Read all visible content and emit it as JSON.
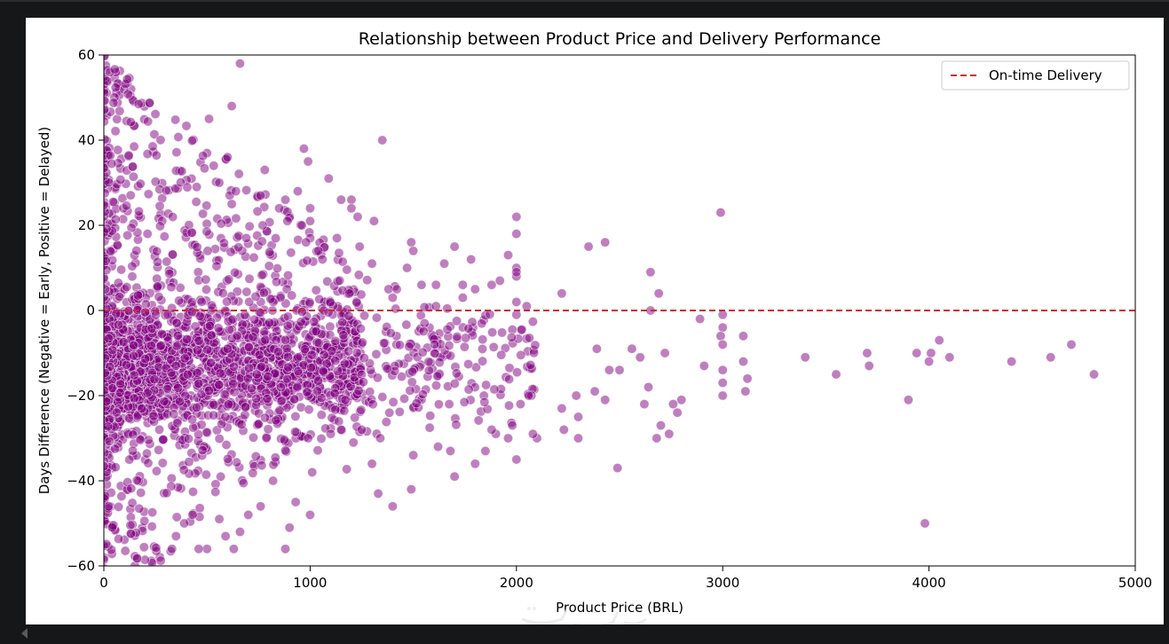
{
  "chart_data": {
    "type": "scatter",
    "title": "Relationship between Product Price and Delivery Performance",
    "xlabel": "Product Price (BRL)",
    "ylabel": "Days Difference (Negative = Early, Positive = Delayed)",
    "xlim": [
      0,
      5000
    ],
    "ylim": [
      -60,
      60
    ],
    "xticks": [
      0,
      1000,
      2000,
      3000,
      4000,
      5000
    ],
    "yticks": [
      -60,
      -40,
      -20,
      0,
      20,
      40,
      60
    ],
    "grid": false,
    "legend": {
      "location": "top-right",
      "entries": [
        "On-time Delivery"
      ]
    },
    "reference_line": {
      "y": 0,
      "style": "dashed",
      "label": "On-time Delivery",
      "color": "#d62728"
    },
    "point_color": "#800080",
    "point_alpha": 0.5,
    "points": [
      [
        660,
        58
      ],
      [
        1350,
        40
      ],
      [
        970,
        38
      ],
      [
        620,
        48
      ],
      [
        510,
        45
      ],
      [
        990,
        35
      ],
      [
        780,
        33
      ],
      [
        1090,
        31
      ],
      [
        600,
        36
      ],
      [
        560,
        30
      ],
      [
        450,
        29
      ],
      [
        640,
        28
      ],
      [
        940,
        28
      ],
      [
        760,
        27
      ],
      [
        1150,
        26
      ],
      [
        1200,
        26
      ],
      [
        620,
        25
      ],
      [
        880,
        26
      ],
      [
        1200,
        24
      ],
      [
        850,
        24
      ],
      [
        1000,
        24
      ],
      [
        2990,
        23
      ],
      [
        1230,
        22
      ],
      [
        1000,
        21
      ],
      [
        1310,
        21
      ],
      [
        2000,
        22
      ],
      [
        890,
        21
      ],
      [
        960,
        20
      ],
      [
        770,
        20
      ],
      [
        2000,
        18
      ],
      [
        690,
        17
      ],
      [
        1000,
        17
      ],
      [
        1130,
        17
      ],
      [
        980,
        16
      ],
      [
        1490,
        16
      ],
      [
        2430,
        16
      ],
      [
        2350,
        15
      ],
      [
        1700,
        15
      ],
      [
        1240,
        15
      ],
      [
        1500,
        14
      ],
      [
        1040,
        14
      ],
      [
        1060,
        12
      ],
      [
        1780,
        12
      ],
      [
        1960,
        13
      ],
      [
        2000,
        10
      ],
      [
        1650,
        11
      ],
      [
        1300,
        11
      ],
      [
        1470,
        10
      ],
      [
        2000,
        8
      ],
      [
        1880,
        6
      ],
      [
        1540,
        6
      ],
      [
        2650,
        9
      ],
      [
        2000,
        9
      ],
      [
        1920,
        7
      ],
      [
        1740,
        6
      ],
      [
        1610,
        6
      ],
      [
        1380,
        5
      ],
      [
        1800,
        5
      ],
      [
        2220,
        4
      ],
      [
        2690,
        4
      ],
      [
        1190,
        4
      ],
      [
        1420,
        5
      ],
      [
        1740,
        3
      ],
      [
        1400,
        3
      ],
      [
        2000,
        2
      ],
      [
        2050,
        1
      ],
      [
        1610,
        1
      ],
      [
        2000,
        -1
      ],
      [
        2650,
        0
      ],
      [
        3000,
        -1
      ],
      [
        2890,
        -2
      ],
      [
        3000,
        -4
      ],
      [
        2990,
        -6
      ],
      [
        3100,
        -6
      ],
      [
        2560,
        -9
      ],
      [
        2390,
        -9
      ],
      [
        2720,
        -10
      ],
      [
        3000,
        -8
      ],
      [
        2600,
        -11
      ],
      [
        3400,
        -11
      ],
      [
        3700,
        -10
      ],
      [
        3710,
        -13
      ],
      [
        3550,
        -15
      ],
      [
        3900,
        -21
      ],
      [
        3940,
        -10
      ],
      [
        4010,
        -10
      ],
      [
        4050,
        -7
      ],
      [
        4100,
        -11
      ],
      [
        4000,
        -12
      ],
      [
        4400,
        -12
      ],
      [
        4590,
        -11
      ],
      [
        4690,
        -8
      ],
      [
        4800,
        -15
      ],
      [
        3980,
        -50
      ],
      [
        3110,
        -19
      ],
      [
        3120,
        -16
      ],
      [
        3100,
        -12
      ],
      [
        3000,
        -14
      ],
      [
        3000,
        -17
      ],
      [
        3000,
        -20
      ],
      [
        2910,
        -13
      ],
      [
        2800,
        -21
      ],
      [
        2780,
        -24
      ],
      [
        2760,
        -22
      ],
      [
        2700,
        -27
      ],
      [
        2680,
        -30
      ],
      [
        2740,
        -29
      ],
      [
        2640,
        -18
      ],
      [
        2620,
        -22
      ],
      [
        2500,
        -14
      ],
      [
        2450,
        -14
      ],
      [
        2430,
        -21
      ],
      [
        2380,
        -19
      ],
      [
        2300,
        -25
      ],
      [
        2300,
        -30
      ],
      [
        2220,
        -23
      ],
      [
        2230,
        -28
      ],
      [
        2100,
        -30
      ],
      [
        2080,
        -29
      ],
      [
        2060,
        -20
      ],
      [
        2020,
        -22
      ],
      [
        2000,
        -35
      ],
      [
        1980,
        -27
      ],
      [
        2490,
        -37
      ],
      [
        2290,
        -20
      ],
      [
        1960,
        -30
      ],
      [
        1900,
        -29
      ],
      [
        1880,
        -28
      ],
      [
        1850,
        -33
      ],
      [
        1800,
        -36
      ],
      [
        1700,
        -39
      ],
      [
        1680,
        -33
      ],
      [
        1620,
        -32
      ],
      [
        1500,
        -34
      ],
      [
        1490,
        -42
      ],
      [
        1400,
        -46
      ],
      [
        1330,
        -43
      ],
      [
        1300,
        -36
      ],
      [
        1340,
        -30
      ],
      [
        1250,
        -28
      ],
      [
        1210,
        -31
      ],
      [
        1150,
        -28
      ],
      [
        1100,
        -29
      ],
      [
        1010,
        -38
      ],
      [
        1000,
        -48
      ],
      [
        990,
        -30
      ],
      [
        930,
        -45
      ],
      [
        900,
        -51
      ],
      [
        880,
        -56
      ],
      [
        820,
        -40
      ],
      [
        760,
        -46
      ],
      [
        700,
        -48
      ],
      [
        660,
        -52
      ],
      [
        630,
        -56
      ],
      [
        590,
        -53
      ],
      [
        560,
        -49
      ],
      [
        500,
        -56
      ],
      [
        460,
        -56
      ],
      [
        430,
        -48
      ],
      [
        390,
        -50
      ],
      [
        350,
        -53
      ],
      [
        330,
        -56
      ]
    ],
    "dense_region": {
      "description": "thousands of overlapping points at low prices",
      "x_range": [
        0,
        1500
      ],
      "y_range": [
        -60,
        60
      ]
    }
  }
}
